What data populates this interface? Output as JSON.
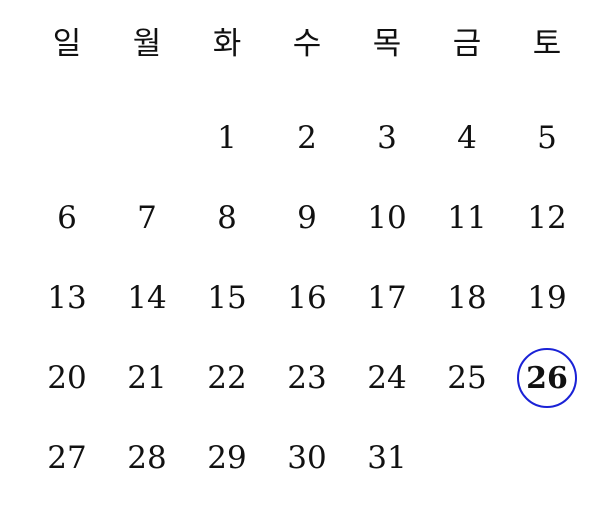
{
  "calendar": {
    "weekdays": [
      "일",
      "월",
      "화",
      "수",
      "목",
      "금",
      "토"
    ],
    "leading_blank_days": 2,
    "days": [
      "1",
      "2",
      "3",
      "4",
      "5",
      "6",
      "7",
      "8",
      "9",
      "10",
      "11",
      "12",
      "13",
      "14",
      "15",
      "16",
      "17",
      "18",
      "19",
      "20",
      "21",
      "22",
      "23",
      "24",
      "25",
      "26",
      "27",
      "28",
      "29",
      "30",
      "31"
    ],
    "selected_day": "26",
    "selection_color": "#1a22d6"
  }
}
